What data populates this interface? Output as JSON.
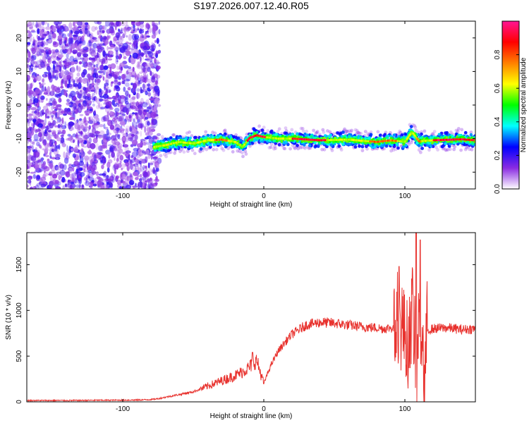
{
  "figure": {
    "title": "S197.2026.007.12.40.R05"
  },
  "chart_data": [
    {
      "type": "heatmap",
      "xlabel": "Height of straight line (km)",
      "ylabel": "Frequency (Hz)",
      "xlim": [
        -168,
        150
      ],
      "ylim": [
        -25,
        25
      ],
      "x_ticks": [
        -100,
        0,
        100
      ],
      "y_ticks": [
        -20,
        -10,
        0,
        10,
        20
      ],
      "grid": false,
      "colorbar": {
        "label": "Normalized spectral amplitude",
        "range": [
          0,
          1
        ],
        "ticks": [
          "0.0",
          "0.2",
          "0.4",
          "0.6",
          "0.8"
        ],
        "colormap": [
          "#ffffff",
          "#8a2be2",
          "#0000ff",
          "#00ffff",
          "#00ff00",
          "#ffff00",
          "#ff8000",
          "#ff0000",
          "#ff1493"
        ]
      },
      "noise_region_x": [
        -168,
        -78
      ],
      "ridge_line": {
        "x": [
          -78,
          -70,
          -60,
          -50,
          -40,
          -30,
          -20,
          -15,
          -10,
          -5,
          0,
          10,
          20,
          40,
          60,
          80,
          90,
          100,
          105,
          110,
          120,
          140,
          150
        ],
        "y": [
          -12.5,
          -12.0,
          -11.0,
          -11.5,
          -10.5,
          -10.3,
          -11.0,
          -12.5,
          -9.8,
          -9.0,
          -9.5,
          -10.0,
          -10.0,
          -10.5,
          -10.3,
          -11.0,
          -10.5,
          -11.0,
          -8.0,
          -10.8,
          -10.5,
          -10.2,
          -10.5
        ],
        "peak_amplitude": 1.0
      }
    },
    {
      "type": "line",
      "xlabel": "Height of straight line (km)",
      "ylabel": "SNR (10 * v/v)",
      "xlim": [
        -168,
        150
      ],
      "ylim": [
        0,
        1850
      ],
      "x_ticks": [
        -100,
        0,
        100
      ],
      "y_ticks": [
        0,
        500,
        1000,
        1500
      ],
      "grid": false,
      "series": [
        {
          "color": "#e8322e",
          "x": [
            -168,
            -140,
            -110,
            -90,
            -80,
            -75,
            -70,
            -60,
            -50,
            -45,
            -40,
            -35,
            -30,
            -25,
            -20,
            -15,
            -10,
            -8,
            -5,
            0,
            5,
            10,
            15,
            20,
            25,
            30,
            40,
            50,
            60,
            70,
            80,
            85,
            90,
            95,
            97,
            100,
            102,
            104,
            106,
            108,
            110,
            112,
            114,
            116,
            120,
            130,
            140,
            150
          ],
          "y": [
            15,
            15,
            18,
            20,
            25,
            35,
            50,
            80,
            110,
            140,
            170,
            200,
            230,
            260,
            290,
            330,
            380,
            420,
            450,
            200,
            400,
            550,
            650,
            740,
            790,
            840,
            870,
            860,
            840,
            820,
            810,
            800,
            810,
            790,
            850,
            780,
            550,
            900,
            1000,
            60,
            1000,
            800,
            200,
            780,
            800,
            810,
            790,
            800
          ]
        }
      ]
    }
  ]
}
